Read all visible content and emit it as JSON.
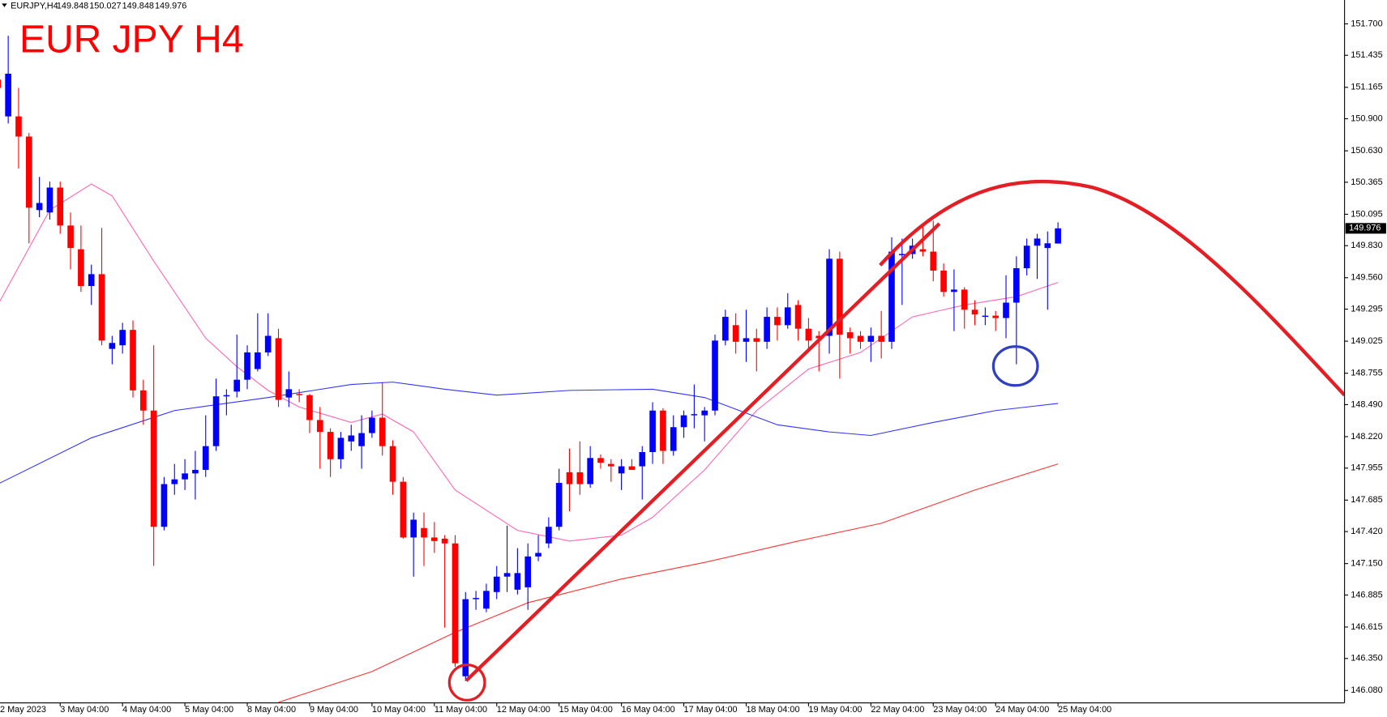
{
  "chart_data": {
    "type": "candlestick",
    "title": "EUR JPY H4",
    "symbol": "EURJPY,H4",
    "up_color": "#0000ff",
    "down_color": "#ff0000",
    "title_color": "#ff0000",
    "ylim": [
      145.976,
      151.901
    ],
    "xlim": [
      0.21,
      129.57
    ],
    "yticks": [
      {
        "value": 151.7,
        "label": "151.700"
      },
      151.435,
      151.165,
      {
        "value": 150.9,
        "label": "150.900"
      },
      {
        "value": 150.63,
        "label": "150.630"
      },
      150.365,
      150.095,
      {
        "value": 149.83,
        "label": "149.830"
      },
      {
        "value": 149.56,
        "label": "149.560"
      },
      149.295,
      149.025,
      148.755,
      {
        "value": 148.49,
        "label": "148.490"
      },
      {
        "value": 148.22,
        "label": "148.220"
      },
      147.955,
      147.685,
      {
        "value": 147.42,
        "label": "147.420"
      },
      {
        "value": 147.15,
        "label": "147.150"
      },
      146.885,
      146.615,
      {
        "value": 146.35,
        "label": "146.350"
      },
      {
        "value": 146.08,
        "label": "146.080"
      }
    ],
    "xticks": [
      {
        "value": 0,
        "label": "2 May 2023"
      },
      {
        "value": 6,
        "label": "3 May 04:00"
      },
      {
        "value": 12,
        "label": "4 May 04:00"
      },
      {
        "value": 18,
        "label": "5 May 04:00"
      },
      {
        "value": 24,
        "label": "8 May 04:00"
      },
      {
        "value": 30,
        "label": "9 May 04:00"
      },
      {
        "value": 36,
        "label": "10 May 04:00"
      },
      {
        "value": 42,
        "label": "11 May 04:00"
      },
      {
        "value": 48,
        "label": "12 May 04:00"
      },
      {
        "value": 54,
        "label": "15 May 04:00"
      },
      {
        "value": 60,
        "label": "16 May 04:00"
      },
      {
        "value": 66,
        "label": "17 May 04:00"
      },
      {
        "value": 72,
        "label": "18 May 04:00"
      },
      {
        "value": 78,
        "label": "19 May 04:00"
      },
      {
        "value": 84,
        "label": "22 May 04:00"
      },
      {
        "value": 90,
        "label": "23 May 04:00"
      },
      {
        "value": 96,
        "label": "24 May 04:00"
      },
      {
        "value": 102,
        "label": "25 May 04:00"
      }
    ],
    "open": [
      151.23,
      150.92,
      150.92,
      150.75,
      150.13,
      150.11,
      150.32,
      150.0,
      149.8,
      149.49,
      149.59,
      148.96,
      148.99,
      149.12,
      148.61,
      148.44,
      147.46,
      147.82,
      147.86,
      147.91,
      147.94,
      148.14,
      148.56,
      148.6,
      148.7,
      148.79,
      148.93,
      149.05,
      148.55,
      148.58,
      148.57,
      148.36,
      148.26,
      148.03,
      148.18,
      148.14,
      148.25,
      148.38,
      148.14,
      147.84,
      147.37,
      147.45,
      147.37,
      147.36,
      147.32,
      146.2,
      146.85,
      146.77,
      146.91,
      147.04,
      146.93,
      146.95,
      147.21,
      147.32,
      147.46,
      147.92,
      147.92,
      147.82,
      148.04,
      147.99,
      147.91,
      147.97,
      147.97,
      148.09,
      148.44,
      148.1,
      148.3,
      148.4,
      148.4,
      148.44,
      149.03,
      149.16,
      149.02,
      149.05,
      149.02,
      149.23,
      149.16,
      149.33,
      149.13,
      149.07,
      149.07,
      149.72,
      149.1,
      149.07,
      149.02,
      149.07,
      149.02,
      149.75,
      149.76,
      149.8,
      149.78,
      149.62,
      149.44,
      149.46,
      149.29,
      149.23,
      149.24,
      149.22,
      149.35,
      149.64,
      149.83,
      149.81,
      149.848
    ],
    "high": [
      151.45,
      151.6,
      151.16,
      150.78,
      150.41,
      150.37,
      150.37,
      150.11,
      150.0,
      149.67,
      149.98,
      149.07,
      149.18,
      149.2,
      148.7,
      148.99,
      147.88,
      147.99,
      148.03,
      148.1,
      148.4,
      148.71,
      148.62,
      149.08,
      148.99,
      149.26,
      149.26,
      149.13,
      148.77,
      148.62,
      148.58,
      148.47,
      148.29,
      148.26,
      148.32,
      148.4,
      148.44,
      148.68,
      148.19,
      147.88,
      147.58,
      147.58,
      147.5,
      147.39,
      147.39,
      146.91,
      146.92,
      146.98,
      147.13,
      147.47,
      147.28,
      147.32,
      147.39,
      147.54,
      147.95,
      148.12,
      148.18,
      148.14,
      148.07,
      148.03,
      148.03,
      148.03,
      148.14,
      148.51,
      148.46,
      148.4,
      148.44,
      148.66,
      148.47,
      149.08,
      149.29,
      149.26,
      149.29,
      149.13,
      149.31,
      149.31,
      149.43,
      149.37,
      149.22,
      149.11,
      149.8,
      149.78,
      149.14,
      149.11,
      149.14,
      149.28,
      149.9,
      149.89,
      149.89,
      150.02,
      150.04,
      149.68,
      149.63,
      149.48,
      149.37,
      149.31,
      149.28,
      149.58,
      149.74,
      149.89,
      149.93,
      149.95,
      150.027
    ],
    "low": [
      151.08,
      150.86,
      150.48,
      149.85,
      150.07,
      150.05,
      149.93,
      149.63,
      149.44,
      149.33,
      148.99,
      148.83,
      148.92,
      148.55,
      148.32,
      147.13,
      147.43,
      147.73,
      147.77,
      147.69,
      147.88,
      148.1,
      148.4,
      148.55,
      148.62,
      148.77,
      148.9,
      148.47,
      148.47,
      148.51,
      148.25,
      147.95,
      147.88,
      147.95,
      148.1,
      147.95,
      148.21,
      148.06,
      147.73,
      147.36,
      147.04,
      147.13,
      147.24,
      146.61,
      146.28,
      146.16,
      146.76,
      146.74,
      146.85,
      146.91,
      146.89,
      146.76,
      147.17,
      147.28,
      147.43,
      147.59,
      147.73,
      147.79,
      147.95,
      147.84,
      147.77,
      147.94,
      147.69,
      147.99,
      147.99,
      148.06,
      148.21,
      148.29,
      148.18,
      148.4,
      148.99,
      148.92,
      148.85,
      148.77,
      148.96,
      149.03,
      149.13,
      149.03,
      148.96,
      148.77,
      148.92,
      148.71,
      148.92,
      148.96,
      148.85,
      148.88,
      148.96,
      149.33,
      149.72,
      149.74,
      149.53,
      149.4,
      149.11,
      149.13,
      149.16,
      149.16,
      149.11,
      149.05,
      148.83,
      149.58,
      149.55,
      149.29,
      149.848
    ],
    "close": [
      151.16,
      151.28,
      150.75,
      150.15,
      150.19,
      150.32,
      150.0,
      149.81,
      149.49,
      149.59,
      149.03,
      149.01,
      149.12,
      148.61,
      148.44,
      147.46,
      147.82,
      147.86,
      147.91,
      147.94,
      148.14,
      148.56,
      148.57,
      148.7,
      148.93,
      148.93,
      149.07,
      148.53,
      148.62,
      148.57,
      148.36,
      148.26,
      148.03,
      148.21,
      148.23,
      148.25,
      148.38,
      148.14,
      147.84,
      147.37,
      147.52,
      147.37,
      147.34,
      147.32,
      146.31,
      146.85,
      146.86,
      146.92,
      147.04,
      147.07,
      147.07,
      147.21,
      147.24,
      147.46,
      147.83,
      147.82,
      147.82,
      148.04,
      148.0,
      147.97,
      147.97,
      147.94,
      148.09,
      148.44,
      148.1,
      148.3,
      148.4,
      148.41,
      148.44,
      149.03,
      149.23,
      149.02,
      149.05,
      149.02,
      149.23,
      149.16,
      149.31,
      149.13,
      149.03,
      149.05,
      149.72,
      149.08,
      149.05,
      149.02,
      149.07,
      149.02,
      149.78,
      149.76,
      149.83,
      149.78,
      149.62,
      149.44,
      149.46,
      149.29,
      149.25,
      149.24,
      149.22,
      149.35,
      149.64,
      149.83,
      149.89,
      149.85,
      149.976
    ],
    "lines": [
      {
        "color": "#ff66b3",
        "x": [
          0,
          3,
          5,
          9,
          11,
          15,
          20,
          23,
          26,
          29,
          34,
          37,
          40,
          44,
          50,
          55,
          60,
          63,
          68,
          73,
          78,
          83,
          88,
          93,
          98,
          102
        ],
        "values": [
          149.33,
          149.81,
          150.13,
          150.35,
          150.25,
          149.7,
          149.05,
          148.81,
          148.61,
          148.47,
          148.34,
          148.41,
          148.26,
          147.77,
          147.43,
          147.34,
          147.39,
          147.54,
          147.94,
          148.44,
          148.79,
          148.93,
          149.23,
          149.33,
          149.4,
          149.52
        ]
      },
      {
        "color": "#3333ff",
        "x": [
          0,
          9,
          17,
          26,
          34,
          38,
          43,
          48,
          55,
          63,
          68,
          75,
          80,
          84,
          90,
          96,
          102
        ],
        "values": [
          147.82,
          148.21,
          148.44,
          148.55,
          148.66,
          148.68,
          148.62,
          148.57,
          148.61,
          148.62,
          148.55,
          148.32,
          148.26,
          148.23,
          148.34,
          148.44,
          148.5
        ]
      },
      {
        "color": "#ff3333",
        "x": [
          27,
          36,
          44,
          51,
          60,
          68,
          77,
          85,
          94,
          102
        ],
        "values": [
          145.98,
          146.24,
          146.57,
          146.82,
          147.02,
          147.16,
          147.34,
          147.49,
          147.77,
          147.99
        ]
      }
    ]
  }
}
